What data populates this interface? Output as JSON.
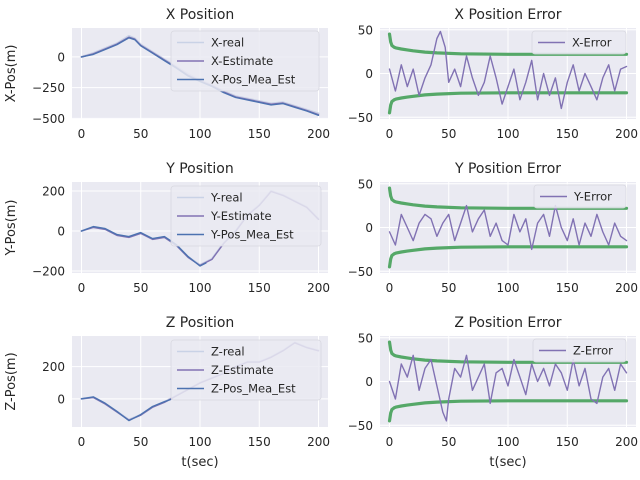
{
  "chart_data": [
    {
      "id": "x-position",
      "type": "line",
      "title": "X Position",
      "xlabel": "",
      "ylabel": "X-Pos(m)",
      "xlim": [
        -8,
        208
      ],
      "ylim": [
        -505,
        235
      ],
      "xticks": [
        0,
        50,
        100,
        150,
        200
      ],
      "yticks": [
        -500,
        -250,
        0
      ],
      "grid": true,
      "legend": "upper-right",
      "series": [
        {
          "name": "X-real",
          "color": "#c9d2e6",
          "width": 2.2,
          "x": [
            0,
            10,
            20,
            30,
            40,
            45,
            50,
            60,
            70,
            80,
            90,
            100,
            110,
            120,
            130,
            140,
            150,
            160,
            170,
            180,
            190,
            200
          ],
          "y": [
            0,
            30,
            70,
            110,
            170,
            150,
            100,
            40,
            -20,
            -80,
            -140,
            -190,
            -230,
            -280,
            -320,
            -340,
            -360,
            -380,
            -370,
            -400,
            -430,
            -460
          ]
        },
        {
          "name": "X-Estimate",
          "color": "#8172b3",
          "width": 1.4,
          "x": [
            0,
            10,
            20,
            30,
            40,
            45,
            50,
            60,
            70,
            80,
            90,
            100,
            110,
            120,
            130,
            140,
            150,
            160,
            170,
            180,
            190,
            200
          ],
          "y": [
            0,
            25,
            65,
            105,
            160,
            145,
            95,
            35,
            -25,
            -85,
            -150,
            -195,
            -235,
            -285,
            -325,
            -345,
            -365,
            -385,
            -375,
            -405,
            -435,
            -470
          ]
        },
        {
          "name": "X-Pos_Mea_Est",
          "color": "#4c72b0",
          "width": 1.4,
          "x": [
            0,
            10,
            20,
            30,
            40,
            45,
            50,
            60,
            70,
            80,
            90,
            100,
            110,
            120,
            130,
            140,
            150,
            160,
            170,
            180,
            190,
            200
          ],
          "y": [
            0,
            20,
            60,
            100,
            155,
            140,
            90,
            30,
            -30,
            -90,
            -155,
            -200,
            -240,
            -290,
            -330,
            -350,
            -370,
            -390,
            -380,
            -410,
            -440,
            -475
          ]
        }
      ]
    },
    {
      "id": "x-position-error",
      "type": "line",
      "title": "X Position Error",
      "xlabel": "",
      "ylabel": "",
      "xlim": [
        -8,
        208
      ],
      "ylim": [
        -52,
        52
      ],
      "xticks": [
        0,
        50,
        100,
        150,
        200
      ],
      "yticks": [
        -50,
        0,
        50
      ],
      "grid": true,
      "legend": "upper-right",
      "series": [
        {
          "name": "",
          "color": "#55a868",
          "width": 3.2,
          "x": [
            0,
            1,
            2,
            4,
            6,
            10,
            15,
            20,
            30,
            40,
            60,
            100,
            150,
            200
          ],
          "y": [
            45,
            36,
            32,
            30,
            29,
            28,
            27,
            26,
            24.5,
            23.5,
            22.5,
            22,
            22,
            22
          ]
        },
        {
          "name": "",
          "color": "#55a868",
          "width": 3.2,
          "x": [
            0,
            1,
            2,
            4,
            6,
            10,
            15,
            20,
            30,
            40,
            60,
            100,
            150,
            200
          ],
          "y": [
            -45,
            -36,
            -32,
            -30,
            -29,
            -28,
            -27,
            -26,
            -24.5,
            -23.5,
            -22.5,
            -22,
            -22,
            -22
          ]
        },
        {
          "name": "X-Error",
          "color": "#8172b3",
          "width": 1.4,
          "x": [
            0,
            5,
            10,
            15,
            20,
            25,
            30,
            35,
            40,
            43,
            47,
            50,
            55,
            60,
            65,
            70,
            75,
            80,
            85,
            90,
            95,
            100,
            105,
            110,
            115,
            120,
            125,
            130,
            135,
            140,
            145,
            150,
            155,
            160,
            165,
            170,
            175,
            180,
            185,
            190,
            195,
            200
          ],
          "y": [
            5,
            -20,
            10,
            -15,
            5,
            -25,
            -5,
            10,
            40,
            48,
            30,
            -10,
            5,
            -15,
            20,
            -5,
            -25,
            -10,
            20,
            -5,
            -35,
            -15,
            5,
            -30,
            -10,
            15,
            -30,
            0,
            -25,
            -5,
            -40,
            -10,
            10,
            -20,
            0,
            -15,
            -30,
            -5,
            10,
            -20,
            5,
            8
          ]
        }
      ]
    },
    {
      "id": "y-position",
      "type": "line",
      "title": "Y Position",
      "xlabel": "",
      "ylabel": "Y-Pos(m)",
      "xlim": [
        -8,
        208
      ],
      "ylim": [
        -210,
        245
      ],
      "xticks": [
        0,
        50,
        100,
        150,
        200
      ],
      "yticks": [
        -200,
        0,
        200
      ],
      "grid": true,
      "legend": "upper-right",
      "series": [
        {
          "name": "Y-real",
          "color": "#c9d2e6",
          "width": 2.2,
          "x": [
            0,
            10,
            20,
            30,
            40,
            50,
            60,
            70,
            80,
            90,
            100,
            110,
            120,
            130,
            140,
            150,
            160,
            170,
            180,
            190,
            200
          ],
          "y": [
            0,
            20,
            10,
            -20,
            -30,
            -10,
            -40,
            -30,
            -70,
            -130,
            -170,
            -140,
            -60,
            0,
            80,
            130,
            200,
            180,
            150,
            120,
            60
          ]
        },
        {
          "name": "Y-Estimate",
          "color": "#8172b3",
          "width": 1.4,
          "x": [
            0,
            10,
            20,
            30,
            40,
            50,
            60,
            70,
            80,
            90,
            100,
            110,
            120,
            130,
            140,
            150,
            160,
            170,
            180,
            190,
            200
          ],
          "y": [
            0,
            18,
            8,
            -22,
            -32,
            -12,
            -42,
            -32,
            -72,
            -132,
            -172,
            -142,
            -62,
            -2,
            78,
            128,
            198,
            178,
            148,
            118,
            58
          ]
        },
        {
          "name": "Y-Pos_Mea_Est",
          "color": "#4c72b0",
          "width": 1.4,
          "x": [
            0,
            10,
            20,
            30,
            40,
            50,
            60,
            70,
            80,
            90,
            100,
            105
          ],
          "y": [
            0,
            22,
            12,
            -18,
            -28,
            -8,
            -38,
            -28,
            -68,
            -128,
            -175,
            -160
          ]
        }
      ]
    },
    {
      "id": "y-position-error",
      "type": "line",
      "title": "Y Position Error",
      "xlabel": "",
      "ylabel": "",
      "xlim": [
        -8,
        208
      ],
      "ylim": [
        -52,
        52
      ],
      "xticks": [
        0,
        50,
        100,
        150,
        200
      ],
      "yticks": [
        -50,
        0,
        50
      ],
      "grid": true,
      "legend": "upper-right",
      "series": [
        {
          "name": "",
          "color": "#55a868",
          "width": 3.2,
          "x": [
            0,
            1,
            2,
            4,
            6,
            10,
            15,
            20,
            30,
            40,
            60,
            100,
            150,
            200
          ],
          "y": [
            45,
            36,
            32,
            30,
            29,
            28,
            27,
            26,
            24.5,
            23.5,
            22.5,
            22,
            22,
            22
          ]
        },
        {
          "name": "",
          "color": "#55a868",
          "width": 3.2,
          "x": [
            0,
            1,
            2,
            4,
            6,
            10,
            15,
            20,
            30,
            40,
            60,
            100,
            150,
            200
          ],
          "y": [
            -45,
            -36,
            -32,
            -30,
            -29,
            -28,
            -27,
            -26,
            -24.5,
            -23.5,
            -22.5,
            -22,
            -22,
            -22
          ]
        },
        {
          "name": "Y-Error",
          "color": "#8172b3",
          "width": 1.4,
          "x": [
            0,
            5,
            10,
            15,
            20,
            25,
            30,
            35,
            40,
            45,
            50,
            55,
            60,
            65,
            70,
            75,
            80,
            85,
            90,
            95,
            100,
            105,
            110,
            115,
            120,
            125,
            130,
            135,
            140,
            145,
            150,
            155,
            160,
            165,
            170,
            175,
            180,
            185,
            190,
            195,
            200
          ],
          "y": [
            -5,
            -20,
            15,
            0,
            -15,
            5,
            15,
            10,
            -10,
            5,
            15,
            -15,
            5,
            25,
            -5,
            10,
            20,
            -10,
            5,
            -15,
            -20,
            15,
            -5,
            10,
            -25,
            5,
            15,
            -10,
            25,
            0,
            -15,
            10,
            -20,
            5,
            -10,
            15,
            -5,
            -20,
            5,
            -10,
            -15
          ]
        }
      ]
    },
    {
      "id": "z-position",
      "type": "line",
      "title": "Z Position",
      "xlabel": "t(sec)",
      "ylabel": "Z-Pos(m)",
      "xlim": [
        -8,
        208
      ],
      "ylim": [
        -175,
        390
      ],
      "xticks": [
        0,
        50,
        100,
        150,
        200
      ],
      "yticks": [
        0,
        200
      ],
      "grid": true,
      "legend": "upper-right",
      "series": [
        {
          "name": "Z-real",
          "color": "#c9d2e6",
          "width": 2.2,
          "x": [
            0,
            10,
            20,
            30,
            40,
            50,
            60,
            70,
            80,
            90,
            100,
            110,
            120,
            130,
            140,
            150,
            160,
            170,
            180,
            190,
            200
          ],
          "y": [
            0,
            10,
            -30,
            -80,
            -130,
            -100,
            -50,
            -20,
            20,
            60,
            100,
            130,
            160,
            200,
            230,
            230,
            260,
            300,
            350,
            320,
            300
          ]
        },
        {
          "name": "Z-Estimate",
          "color": "#8172b3",
          "width": 1.4,
          "x": [
            0,
            10,
            20,
            30,
            40,
            50,
            60,
            70,
            80,
            90,
            100,
            110,
            120,
            130,
            140,
            150,
            160,
            170,
            180,
            190,
            200
          ],
          "y": [
            0,
            8,
            -32,
            -82,
            -132,
            -102,
            -52,
            -22,
            18,
            58,
            98,
            128,
            158,
            198,
            228,
            228,
            258,
            298,
            348,
            318,
            298
          ]
        },
        {
          "name": "Z-Pos_Mea_Est",
          "color": "#4c72b0",
          "width": 1.4,
          "x": [
            0,
            10,
            20,
            30,
            40,
            50,
            60,
            70,
            75
          ],
          "y": [
            0,
            12,
            -28,
            -78,
            -135,
            -98,
            -48,
            -18,
            -5
          ]
        }
      ]
    },
    {
      "id": "z-position-error",
      "type": "line",
      "title": "Z Position Error",
      "xlabel": "t(sec)",
      "ylabel": "",
      "xlim": [
        -8,
        208
      ],
      "ylim": [
        -52,
        52
      ],
      "xticks": [
        0,
        50,
        100,
        150,
        200
      ],
      "yticks": [
        -50,
        0,
        50
      ],
      "grid": true,
      "legend": "upper-right",
      "series": [
        {
          "name": "",
          "color": "#55a868",
          "width": 3.2,
          "x": [
            0,
            1,
            2,
            4,
            6,
            10,
            15,
            20,
            30,
            40,
            60,
            100,
            150,
            200
          ],
          "y": [
            45,
            36,
            32,
            30,
            29,
            28,
            27,
            26,
            24.5,
            23.5,
            22.5,
            22,
            22,
            22
          ]
        },
        {
          "name": "",
          "color": "#55a868",
          "width": 3.2,
          "x": [
            0,
            1,
            2,
            4,
            6,
            10,
            15,
            20,
            30,
            40,
            60,
            100,
            150,
            200
          ],
          "y": [
            -45,
            -36,
            -32,
            -30,
            -29,
            -28,
            -27,
            -26,
            -24.5,
            -23.5,
            -22.5,
            -22,
            -22,
            -22
          ]
        },
        {
          "name": "Z-Error",
          "color": "#8172b3",
          "width": 1.4,
          "x": [
            0,
            5,
            10,
            15,
            20,
            25,
            30,
            35,
            40,
            45,
            48,
            50,
            55,
            60,
            65,
            70,
            75,
            80,
            85,
            90,
            95,
            100,
            105,
            110,
            115,
            120,
            125,
            130,
            135,
            140,
            145,
            150,
            155,
            160,
            165,
            170,
            175,
            180,
            185,
            190,
            195,
            200
          ],
          "y": [
            0,
            -20,
            20,
            5,
            30,
            -10,
            15,
            25,
            -5,
            -35,
            -45,
            -20,
            15,
            5,
            30,
            -10,
            5,
            20,
            -25,
            10,
            15,
            -5,
            25,
            5,
            -15,
            20,
            0,
            15,
            -5,
            20,
            10,
            -10,
            25,
            -5,
            15,
            -20,
            -25,
            5,
            15,
            -10,
            20,
            10
          ]
        }
      ]
    }
  ]
}
